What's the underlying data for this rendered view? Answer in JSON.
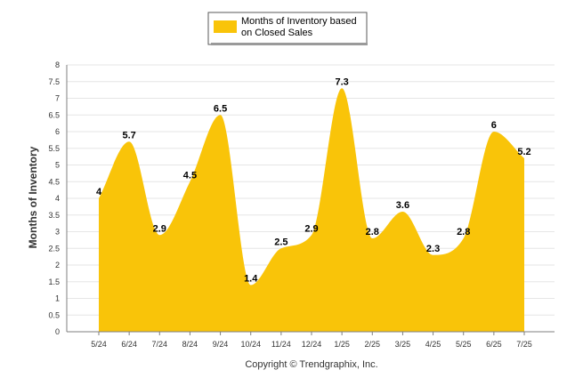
{
  "chart_data": {
    "type": "area",
    "categories": [
      "5/24",
      "6/24",
      "7/24",
      "8/24",
      "9/24",
      "10/24",
      "11/24",
      "12/24",
      "1/25",
      "2/25",
      "3/25",
      "4/25",
      "5/25",
      "6/25",
      "7/25"
    ],
    "series": [
      {
        "name": "Months of Inventory based on Closed Sales",
        "values": [
          4,
          5.7,
          2.9,
          4.5,
          6.5,
          1.4,
          2.5,
          2.9,
          7.3,
          2.8,
          3.6,
          2.3,
          2.8,
          6,
          5.2
        ]
      }
    ],
    "data_labels": [
      "4",
      "5.7",
      "2.9",
      "4.5",
      "6.5",
      "1.4",
      "2.5",
      "2.9",
      "7.3",
      "2.8",
      "3.6",
      "2.3",
      "2.8",
      "6",
      "5.2"
    ],
    "ylabel": "Months of Inventory",
    "xlabel": "",
    "ylim": [
      0,
      8
    ],
    "yticks": [
      0,
      0.5,
      1,
      1.5,
      2,
      2.5,
      3,
      3.5,
      4,
      4.5,
      5,
      5.5,
      6,
      6.5,
      7,
      7.5,
      8
    ],
    "ytick_labels": [
      "0",
      "0.5",
      "1",
      "1.5",
      "2",
      "2.5",
      "3",
      "3.5",
      "4",
      "4.5",
      "5",
      "5.5",
      "6",
      "6.5",
      "7",
      "7.5",
      "8"
    ],
    "grid": true,
    "legend_position": "top",
    "legend_label_lines": [
      "Months of Inventory based",
      "on Closed Sales"
    ],
    "fill_color": "#F9C409",
    "grid_color": "#E6E6E6"
  },
  "footer": {
    "copyright": "Copyright © Trendgraphix, Inc."
  }
}
